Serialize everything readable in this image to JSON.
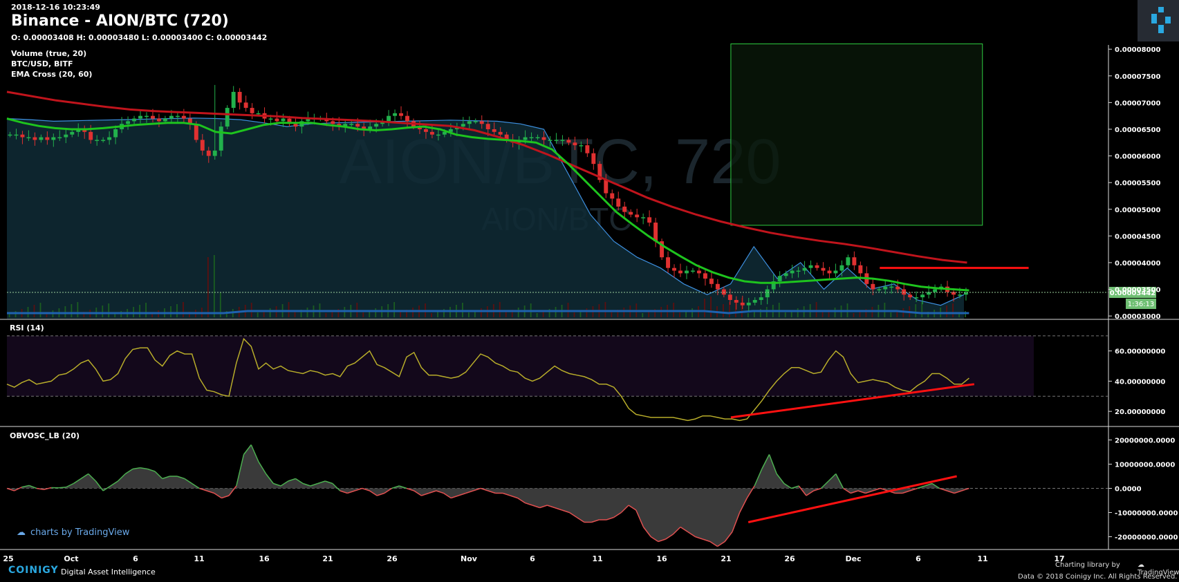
{
  "header": {
    "timestamp": "2018-12-16 10:23:49",
    "title": "Binance - AION/BTC (720)",
    "ohlc": "O: 0.00003408 H: 0.00003480 L: 0.00003400 C: 0.00003442"
  },
  "indicators": [
    "Volume (true, 20)",
    "BTC/USD, BITF",
    "EMA Cross (20, 60)"
  ],
  "watermark": {
    "big": "AION/BTC, 720",
    "small": "AION/BTC"
  },
  "price_badge": {
    "price": "0.00003442",
    "countdown": "1:36:13"
  },
  "footer": {
    "tv_link": "charts by TradingView",
    "brand": "COINIGY",
    "tagline": "Digital Asset Intelligence",
    "charting_by": "Charting library by",
    "tv_brand": "TradingView",
    "copyright": "Data © 2018  Coinigy Inc. All Rights Reserved."
  },
  "colors": {
    "up": "#22b14c",
    "down": "#e03131",
    "ema20": "#1ec41e",
    "ema60": "#c0141c",
    "btc": "#3d8fdf",
    "rsi": "#b8ad2a",
    "obv_pos": "#4caf50",
    "obv_neg": "#e05050",
    "trend": "#ff1111",
    "box": "#2ecc40"
  },
  "chart_data": {
    "type": "candlestick",
    "price_axis": {
      "ticks": [
        "0.00008000",
        "0.00007500",
        "0.00007000",
        "0.00006500",
        "0.00006000",
        "0.00005500",
        "0.00005000",
        "0.00004500",
        "0.00004000",
        "0.00003500",
        "0.00003000"
      ],
      "range": [
        2.95e-05,
        8.08e-05
      ]
    },
    "x_axis": {
      "labels": [
        "25",
        "Oct",
        "6",
        "11",
        "16",
        "21",
        "26",
        "Nov",
        "6",
        "11",
        "16",
        "21",
        "26",
        "Dec",
        "6",
        "11",
        "17"
      ]
    },
    "price": [
      6.4,
      6.4,
      6.35,
      6.35,
      6.3,
      6.35,
      6.3,
      6.35,
      6.35,
      6.4,
      6.45,
      6.5,
      6.45,
      6.3,
      6.3,
      6.3,
      6.35,
      6.5,
      6.6,
      6.65,
      6.7,
      6.75,
      6.75,
      6.7,
      6.65,
      6.7,
      6.75,
      6.75,
      6.7,
      6.6,
      6.3,
      6.1,
      6.0,
      6.1,
      6.55,
      6.9,
      7.2,
      7.0,
      6.9,
      6.8,
      6.8,
      6.7,
      6.7,
      6.65,
      6.7,
      6.6,
      6.55,
      6.65,
      6.7,
      6.7,
      6.7,
      6.65,
      6.6,
      6.55,
      6.6,
      6.6,
      6.55,
      6.5,
      6.55,
      6.6,
      6.65,
      6.75,
      6.8,
      6.75,
      6.65,
      6.55,
      6.5,
      6.45,
      6.4,
      6.4,
      6.45,
      6.5,
      6.55,
      6.6,
      6.65,
      6.65,
      6.6,
      6.5,
      6.45,
      6.4,
      6.3,
      6.25,
      6.3,
      6.35,
      6.35,
      6.35,
      6.3,
      6.3,
      6.3,
      6.3,
      6.25,
      6.2,
      6.2,
      6.05,
      5.85,
      5.55,
      5.3,
      5.2,
      5.05,
      4.95,
      4.9,
      4.85,
      4.85,
      4.75,
      4.4,
      4.1,
      3.9,
      3.85,
      3.8,
      3.85,
      3.85,
      3.8,
      3.7,
      3.6,
      3.5,
      3.4,
      3.3,
      3.25,
      3.2,
      3.25,
      3.3,
      3.35,
      3.5,
      3.65,
      3.75,
      3.8,
      3.85,
      3.85,
      3.9,
      3.95,
      3.9,
      3.85,
      3.8,
      3.85,
      3.95,
      4.1,
      3.95,
      3.8,
      3.6,
      3.5,
      3.5,
      3.55,
      3.55,
      3.5,
      3.4,
      3.35,
      3.35,
      3.4,
      3.45,
      3.5,
      3.55,
      3.45,
      3.4,
      3.4,
      3.44
    ],
    "ema20": [
      6.7,
      6.62,
      6.56,
      6.52,
      6.5,
      6.5,
      6.52,
      6.55,
      6.58,
      6.6,
      6.62,
      6.62,
      6.58,
      6.45,
      6.42,
      6.5,
      6.58,
      6.62,
      6.62,
      6.62,
      6.58,
      6.55,
      6.5,
      6.48,
      6.5,
      6.53,
      6.55,
      6.5,
      6.4,
      6.35,
      6.32,
      6.3,
      6.28,
      6.25,
      6.12,
      5.85,
      5.55,
      5.25,
      4.95,
      4.72,
      4.5,
      4.3,
      4.12,
      3.95,
      3.82,
      3.72,
      3.65,
      3.62,
      3.62,
      3.64,
      3.66,
      3.68,
      3.7,
      3.72,
      3.7,
      3.66,
      3.6,
      3.55,
      3.52,
      3.5,
      3.48
    ],
    "ema60": [
      7.2,
      7.12,
      7.04,
      6.98,
      6.92,
      6.87,
      6.84,
      6.82,
      6.8,
      6.78,
      6.76,
      6.74,
      6.71,
      6.69,
      6.67,
      6.65,
      6.62,
      6.59,
      6.56,
      6.48,
      6.35,
      6.2,
      6.02,
      5.82,
      5.62,
      5.42,
      5.22,
      5.05,
      4.9,
      4.77,
      4.66,
      4.56,
      4.48,
      4.41,
      4.35,
      4.28,
      4.2,
      4.12,
      4.05,
      4.0
    ],
    "btc_usd": [
      6.7,
      6.68,
      6.65,
      6.66,
      6.67,
      6.68,
      6.69,
      6.7,
      6.71,
      6.7,
      6.68,
      6.62,
      6.55,
      6.6,
      6.62,
      6.63,
      6.64,
      6.65,
      6.66,
      6.67,
      6.66,
      6.65,
      6.6,
      6.5,
      5.7,
      4.9,
      4.4,
      4.1,
      3.9,
      3.6,
      3.4,
      3.6,
      4.3,
      3.7,
      4.0,
      3.5,
      3.9,
      3.5,
      3.6,
      3.3,
      3.2,
      3.4
    ],
    "rsi_range": [
      10,
      80
    ],
    "rsi_ticks": [
      "60.00000000",
      "40.00000000",
      "20.00000000"
    ],
    "rsi_bands": [
      70,
      30
    ],
    "rsi": [
      38,
      36,
      39,
      41,
      38,
      39,
      40,
      44,
      45,
      48,
      52,
      54,
      48,
      40,
      41,
      45,
      55,
      61,
      62,
      62,
      54,
      50,
      57,
      60,
      58,
      58,
      42,
      34,
      33,
      31,
      30,
      52,
      68,
      63,
      48,
      52,
      48,
      50,
      47,
      46,
      45,
      47,
      46,
      44,
      45,
      43,
      50,
      52,
      56,
      60,
      51,
      49,
      46,
      43,
      56,
      59,
      49,
      44,
      44,
      43,
      42,
      43,
      46,
      52,
      58,
      56,
      52,
      50,
      47,
      46,
      42,
      40,
      42,
      46,
      50,
      47,
      45,
      44,
      43,
      41,
      38,
      38,
      36,
      30,
      22,
      18,
      17,
      16,
      16,
      16,
      16,
      15,
      14,
      15,
      17,
      17,
      16,
      15,
      15,
      14,
      15,
      21,
      27,
      34,
      40,
      45,
      49,
      49,
      47,
      45,
      46,
      54,
      60,
      56,
      45,
      39,
      40,
      41,
      40,
      39,
      36,
      34,
      33,
      37,
      40,
      45,
      45,
      42,
      38,
      38,
      42
    ],
    "obv_range": [
      -25000000,
      25000000
    ],
    "obv_ticks": [
      "20000000.0000",
      "10000000.0000",
      "0.0000",
      "-10000000.0000",
      "-20000000.0000"
    ],
    "obv": [
      0,
      -1,
      0.5,
      1.2,
      0,
      -0.5,
      0.3,
      0.2,
      0.5,
      2,
      4,
      6,
      3,
      -1,
      1,
      3,
      6,
      8,
      8.5,
      8,
      7,
      4,
      5,
      5,
      4,
      2,
      0,
      -1,
      -2,
      -4,
      -3,
      1,
      14,
      18,
      11,
      6,
      2,
      1,
      3,
      4,
      2,
      1,
      2,
      3,
      2,
      -1,
      -2,
      -1,
      0,
      -1,
      -3,
      -2,
      0,
      1,
      0,
      -1,
      -3,
      -2,
      -1,
      -2,
      -4,
      -3,
      -2,
      -1,
      0,
      -1,
      -2,
      -2,
      -3,
      -4,
      -6,
      -7,
      -8,
      -7,
      -8,
      -9,
      -10,
      -12,
      -14,
      -14,
      -13,
      -13,
      -12,
      -10,
      -7,
      -9,
      -16,
      -20,
      -22,
      -21,
      -19,
      -16,
      -18,
      -20,
      -21,
      -22,
      -24,
      -22,
      -18,
      -10,
      -4,
      1,
      8,
      14,
      6,
      2,
      0,
      1,
      -3,
      -1,
      0,
      3,
      6,
      0,
      -2,
      -1,
      -2,
      -1,
      0,
      -1,
      -2,
      -2,
      -1,
      0,
      1,
      2,
      0,
      -1,
      -2,
      -1,
      0
    ],
    "trend_lines": [
      {
        "pane": "price",
        "from": [
          0.85,
          3.9
        ],
        "to": [
          0.995,
          3.9
        ]
      },
      {
        "pane": "rsi",
        "from": [
          0.705,
          16
        ],
        "to": [
          0.942,
          38
        ]
      },
      {
        "pane": "obv",
        "from": [
          0.722,
          -14
        ],
        "to": [
          0.925,
          5
        ]
      }
    ],
    "measure_box": {
      "x_frac": [
        0.705,
        0.95
      ],
      "price": [
        4.7,
        8.1
      ]
    }
  }
}
